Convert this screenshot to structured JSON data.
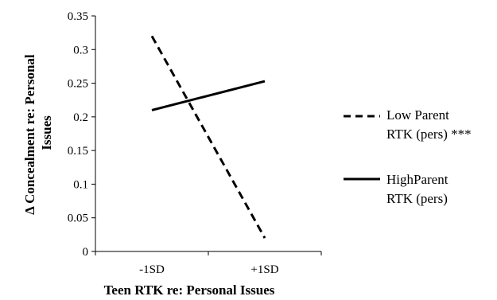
{
  "chart_data": {
    "type": "line",
    "categories": [
      "-1SD",
      "+1SD"
    ],
    "series": [
      {
        "name_lines": [
          "Low Parent",
          "RTK (pers) ***"
        ],
        "values": [
          0.32,
          0.02
        ],
        "style": "dashed",
        "color": "#000000"
      },
      {
        "name_lines": [
          "HighParent",
          "RTK (pers)"
        ],
        "values": [
          0.21,
          0.253
        ],
        "style": "solid",
        "color": "#000000"
      }
    ],
    "xlabel": "Teen RTK re: Personal Issues",
    "ylabel_lines": [
      "Δ Concealment re: Personal",
      "Issues"
    ],
    "ylim": [
      0,
      0.35
    ],
    "yticks": [
      "0",
      "0.05",
      "0.1",
      "0.15",
      "0.2",
      "0.25",
      "0.3",
      "0.35"
    ],
    "ytick_values": [
      0,
      0.05,
      0.1,
      0.15,
      0.2,
      0.25,
      0.3,
      0.35
    ],
    "grid": false,
    "legend_position": "right"
  }
}
